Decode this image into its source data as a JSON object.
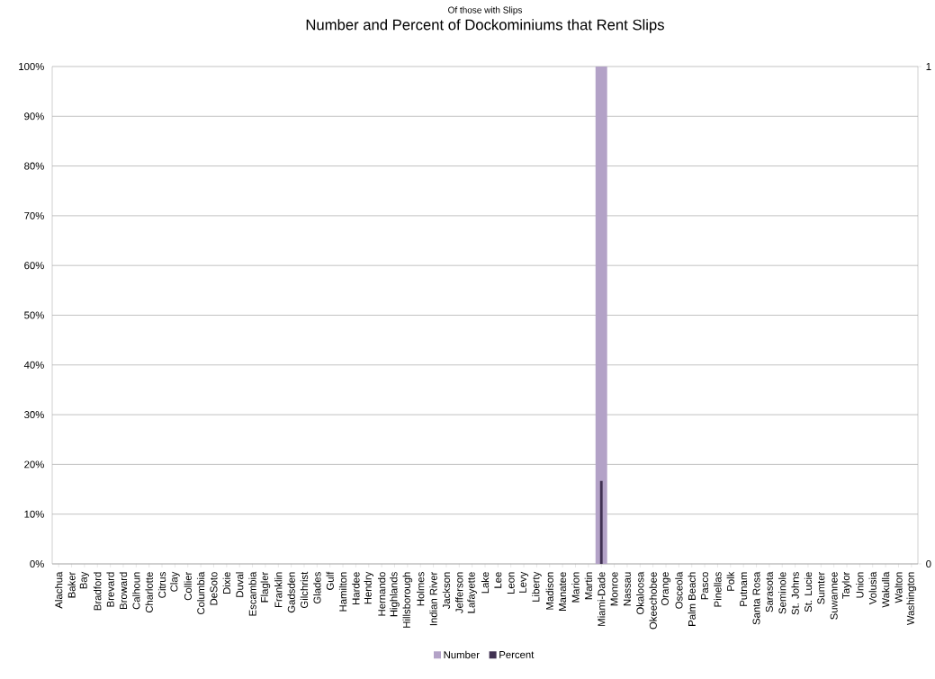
{
  "chart_data": {
    "type": "bar",
    "subtitle": "Of those with Slips",
    "title": "Number and Percent of Dockominiums that Rent Slips",
    "categories": [
      "Alachua",
      "Baker",
      "Bay",
      "Bradford",
      "Brevard",
      "Broward",
      "Calhoun",
      "Charlotte",
      "Citrus",
      "Clay",
      "Collier",
      "Columbia",
      "DeSoto",
      "Dixie",
      "Duval",
      "Escambia",
      "Flagler",
      "Franklin",
      "Gadsden",
      "Gilchrist",
      "Glades",
      "Gulf",
      "Hamilton",
      "Hardee",
      "Hendry",
      "Hernando",
      "Highlands",
      "Hillsborough",
      "Holmes",
      "Indian River",
      "Jackson",
      "Jefferson",
      "Lafayette",
      "Lake",
      "Lee",
      "Leon",
      "Levy",
      "Liberty",
      "Madison",
      "Manatee",
      "Marion",
      "Martin",
      "Miami-Dade",
      "Monroe",
      "Nassau",
      "Okaloosa",
      "Okeechobee",
      "Orange",
      "Osceola",
      "Palm Beach",
      "Pasco",
      "Pinellas",
      "Polk",
      "Putnam",
      "Santa Rosa",
      "Sarasota",
      "Seminole",
      "St. Johns",
      "St. Lucie",
      "Sumter",
      "Suwannee",
      "Taylor",
      "Union",
      "Volusia",
      "Wakulla",
      "Walton",
      "Washington"
    ],
    "series": [
      {
        "name": "Number",
        "color": "#b3a2c7",
        "axis": "y2",
        "values": [
          0,
          0,
          0,
          0,
          0,
          0,
          0,
          0,
          0,
          0,
          0,
          0,
          0,
          0,
          0,
          0,
          0,
          0,
          0,
          0,
          0,
          0,
          0,
          0,
          0,
          0,
          0,
          0,
          0,
          0,
          0,
          0,
          0,
          0,
          0,
          0,
          0,
          0,
          0,
          0,
          0,
          0,
          1,
          0,
          0,
          0,
          0,
          0,
          0,
          0,
          0,
          0,
          0,
          0,
          0,
          0,
          0,
          0,
          0,
          0,
          0,
          0,
          0,
          0,
          0,
          0,
          0
        ]
      },
      {
        "name": "Percent",
        "color": "#403152",
        "values": [
          0,
          0,
          0,
          0,
          0,
          0,
          0,
          0,
          0,
          0,
          0,
          0,
          0,
          0,
          0,
          0,
          0,
          0,
          0,
          0,
          0,
          0,
          0,
          0,
          0,
          0,
          0,
          0,
          0,
          0,
          0,
          0,
          0,
          0,
          0,
          0,
          0,
          0,
          0,
          0,
          0,
          0,
          16.7,
          0,
          0,
          0,
          0,
          0,
          0,
          0,
          0,
          0,
          0,
          0,
          0,
          0,
          0,
          0,
          0,
          0,
          0,
          0,
          0,
          0,
          0,
          0,
          0
        ]
      }
    ],
    "ylim": [
      0,
      100
    ],
    "yticks": [
      {
        "value": 0,
        "label": "0%"
      },
      {
        "value": 10,
        "label": "10%"
      },
      {
        "value": 20,
        "label": "20%"
      },
      {
        "value": 30,
        "label": "30%"
      },
      {
        "value": 40,
        "label": "40%"
      },
      {
        "value": 50,
        "label": "50%"
      },
      {
        "value": 60,
        "label": "60%"
      },
      {
        "value": 70,
        "label": "70%"
      },
      {
        "value": 80,
        "label": "80%"
      },
      {
        "value": 90,
        "label": "90%"
      },
      {
        "value": 100,
        "label": "100%"
      }
    ],
    "y2lim": [
      0,
      1
    ],
    "y2ticks": [
      0,
      1
    ],
    "grid": "y",
    "legend": "bottom"
  }
}
